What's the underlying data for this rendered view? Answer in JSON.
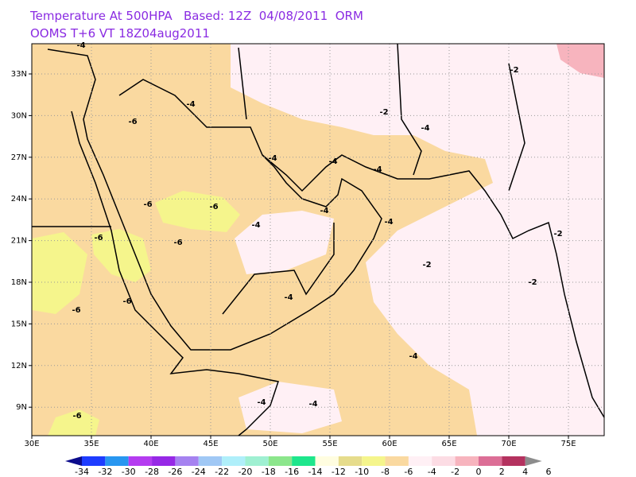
{
  "header": {
    "line1": "Temperature At 500HPA   Based: 12Z  04/08/2011  ORM",
    "line2": "OOMS  T+6 VT 18Z04aug2011"
  },
  "map": {
    "lon_ticks": [
      "30E",
      "35E",
      "40E",
      "45E",
      "50E",
      "55E",
      "60E",
      "65E",
      "70E",
      "75E"
    ],
    "lat_ticks": [
      "33N",
      "30N",
      "27N",
      "24N",
      "21N",
      "18N",
      "15N",
      "12N",
      "9N"
    ],
    "contour_labels": [
      "-4",
      "-2",
      "-4",
      "-6",
      "-2",
      "-4",
      "-4",
      "-4",
      "-4",
      "-6",
      "-6",
      "-4",
      "-4",
      "-4",
      "-6",
      "-6",
      "-2",
      "-2",
      "-2",
      "-4",
      "-6",
      "-6",
      "-4",
      "-4",
      "-4",
      "-6"
    ]
  },
  "colorbar": {
    "labels": [
      "-34",
      "-32",
      "-30",
      "-28",
      "-26",
      "-24",
      "-22",
      "-20",
      "-18",
      "-16",
      "-14",
      "-12",
      "-10",
      "-8",
      "-6",
      "-4",
      "-2",
      "0",
      "2",
      "4",
      "6"
    ],
    "colors": [
      "#0c0c8c",
      "#1e3cff",
      "#2896f0",
      "#b43cf0",
      "#9628e6",
      "#a582f0",
      "#a0c8f5",
      "#afeffa",
      "#9ff0d2",
      "#8ce68c",
      "#1ee68c",
      "#fffde0",
      "#e6dc8c",
      "#f5f58c",
      "#fad9a0",
      "#fff0f5",
      "#fcdce4",
      "#f7b4be",
      "#dc6e96",
      "#b4325f",
      "#8c8c8c"
    ]
  }
}
